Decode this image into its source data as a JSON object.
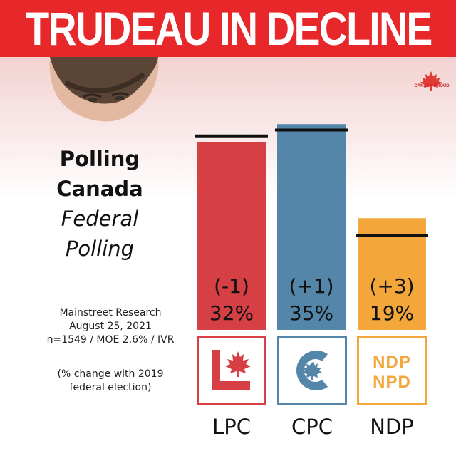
{
  "banner": {
    "title": "TRUDEAU IN DECLINE",
    "color": "#e8272b"
  },
  "brand": {
    "logo_text": "CANADA PROUD",
    "icon": "maple-leaf-icon"
  },
  "publisher": {
    "line1": "Polling",
    "line2": "Canada",
    "line3": "Federal",
    "line4": "Polling"
  },
  "source": {
    "firm": "Mainstreet Research",
    "date": "August 25, 2021",
    "details": "n=1549 / MOE 2.6% / IVR"
  },
  "note": {
    "line1": "(% change with 2019",
    "line2": "federal election)"
  },
  "chart_data": {
    "type": "bar",
    "title": "TRUDEAU IN DECLINE",
    "categories": [
      "LPC",
      "CPC",
      "NDP"
    ],
    "values": [
      32,
      35,
      19
    ],
    "changes": [
      "(-1)",
      "(+1)",
      "(+3)"
    ],
    "value_labels": [
      "32%",
      "35%",
      "19%"
    ],
    "previous_values": [
      33,
      34,
      16
    ],
    "colors": [
      "#d64045",
      "#5386a9",
      "#f3a73b"
    ],
    "reference_marker": "black line = 2019 federal election result",
    "grid": false
  },
  "logos": {
    "lpc": {
      "icon": "liberal-logo-icon",
      "color": "#d64045"
    },
    "cpc": {
      "icon": "conservative-logo-icon",
      "color": "#5386a9"
    },
    "ndp": {
      "text1": "NDP",
      "text2": "NPD",
      "color": "#f3a73b"
    }
  }
}
